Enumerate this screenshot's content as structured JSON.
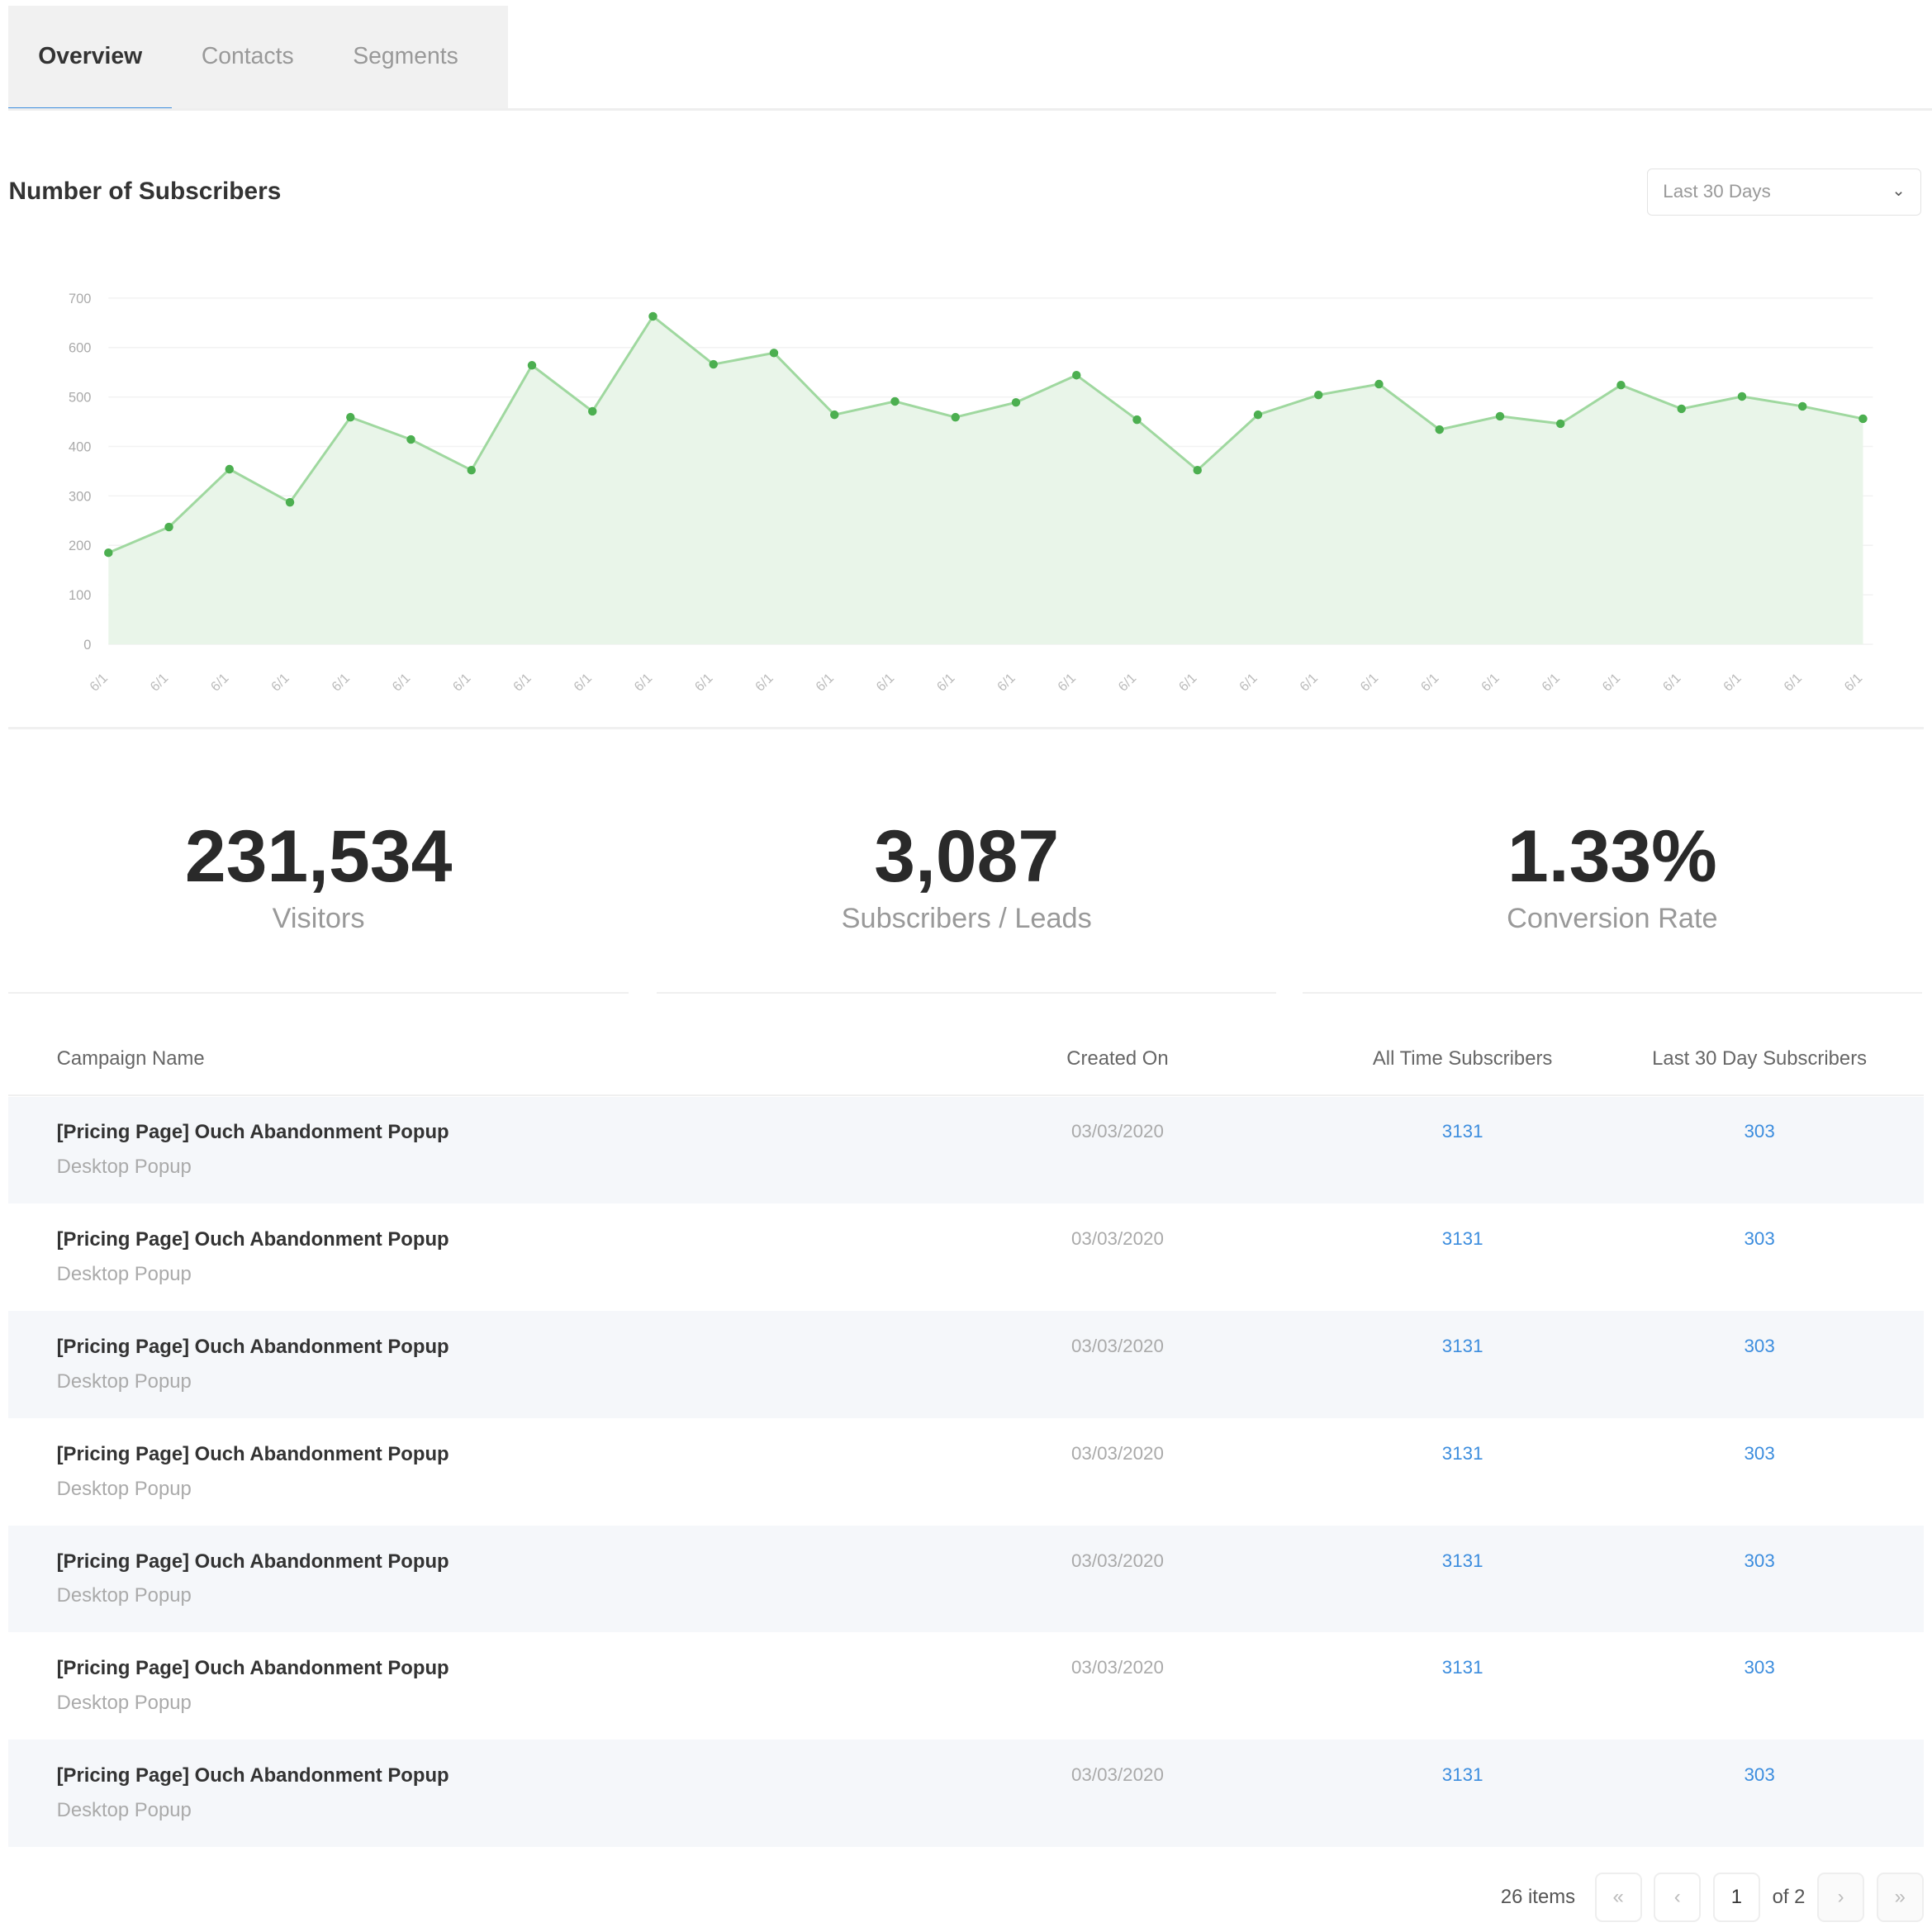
{
  "tabs": [
    {
      "label": "Overview",
      "active": true
    },
    {
      "label": "Contacts"
    },
    {
      "label": "Segments"
    }
  ],
  "section_title": "Number of Subscribers",
  "range_select": {
    "value": "Last 30 Days",
    "icon": "chevron-down-icon"
  },
  "colors": {
    "accent": "#3c8dde",
    "series": "#4caf50",
    "fill": "#e9f5e9"
  },
  "chart_data": {
    "type": "area",
    "ylim": [
      0,
      700
    ],
    "yticks": [
      0,
      100,
      200,
      300,
      400,
      500,
      600,
      700
    ],
    "grid": true,
    "x": [
      "6/1",
      "6/1",
      "6/1",
      "6/1",
      "6/1",
      "6/1",
      "6/1",
      "6/1",
      "6/1",
      "6/1",
      "6/1",
      "6/1",
      "6/1",
      "6/1",
      "6/1",
      "6/1",
      "6/1",
      "6/1",
      "6/1",
      "6/1",
      "6/1",
      "6/1",
      "6/1",
      "6/1",
      "6/1",
      "6/1",
      "6/1",
      "6/1",
      "6/1",
      "6/1"
    ],
    "values": [
      185,
      237,
      354,
      287,
      459,
      414,
      352,
      564,
      471,
      663,
      566,
      589,
      464,
      491,
      459,
      489,
      544,
      454,
      352,
      464,
      504,
      526,
      434,
      461,
      446,
      524,
      476,
      501,
      481,
      456
    ]
  },
  "stats": [
    {
      "value": "231,534",
      "label": "Visitors"
    },
    {
      "value": "3,087",
      "label": "Subscribers / Leads"
    },
    {
      "value": "1.33%",
      "label": "Conversion Rate"
    }
  ],
  "table": {
    "headers": [
      "Campaign Name",
      "Created On",
      "All Time Subscribers",
      "Last 30 Day Subscribers"
    ],
    "rows": [
      {
        "name": "[Pricing Page] Ouch Abandonment Popup",
        "type": "Desktop Popup",
        "created": "03/03/2020",
        "all_time": "3131",
        "last30": "303"
      },
      {
        "name": "[Pricing Page] Ouch Abandonment Popup",
        "type": "Desktop Popup",
        "created": "03/03/2020",
        "all_time": "3131",
        "last30": "303"
      },
      {
        "name": "[Pricing Page] Ouch Abandonment Popup",
        "type": "Desktop Popup",
        "created": "03/03/2020",
        "all_time": "3131",
        "last30": "303"
      },
      {
        "name": "[Pricing Page] Ouch Abandonment Popup",
        "type": "Desktop Popup",
        "created": "03/03/2020",
        "all_time": "3131",
        "last30": "303"
      },
      {
        "name": "[Pricing Page] Ouch Abandonment Popup",
        "type": "Desktop Popup",
        "created": "03/03/2020",
        "all_time": "3131",
        "last30": "303"
      },
      {
        "name": "[Pricing Page] Ouch Abandonment Popup",
        "type": "Desktop Popup",
        "created": "03/03/2020",
        "all_time": "3131",
        "last30": "303"
      },
      {
        "name": "[Pricing Page] Ouch Abandonment Popup",
        "type": "Desktop Popup",
        "created": "03/03/2020",
        "all_time": "3131",
        "last30": "303"
      }
    ]
  },
  "pagination": {
    "items": "26 items",
    "first": "«",
    "prev": "‹",
    "page": "1",
    "of": "of 2",
    "next": "›",
    "last": "»"
  }
}
